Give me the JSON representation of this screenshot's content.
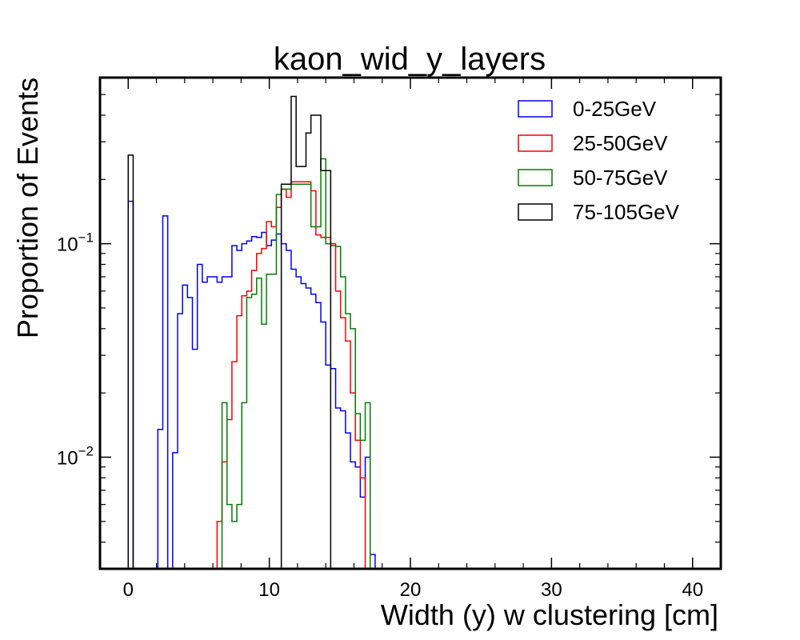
{
  "chart_data": {
    "type": "histogram-step",
    "title": "kaon_wid_y_layers",
    "xlabel": "Width (y) w clustering [cm]",
    "ylabel": "Proportion of Events",
    "xlim": [
      -2,
      42
    ],
    "ylim": [
      0.003,
      0.6
    ],
    "yscale": "log",
    "bin_width": 0.35,
    "x_ticks": [
      0,
      10,
      20,
      30,
      40
    ],
    "x_tick_labels": [
      "0",
      "10",
      "20",
      "30",
      "40"
    ],
    "y_ticks": [
      0.01,
      0.1
    ],
    "y_tick_labels": [
      {
        "base": "10",
        "exp": "−2"
      },
      {
        "base": "10",
        "exp": "−1"
      }
    ],
    "legend_position": "top-right",
    "grid": false,
    "series": [
      {
        "name": "0-25GeV",
        "color": "#0000ff",
        "bins": [
          [
            0.0,
            0.158
          ],
          [
            0.35,
            0.0
          ],
          [
            1.75,
            0.0
          ],
          [
            2.1,
            0.0135
          ],
          [
            2.45,
            0.135
          ],
          [
            2.8,
            0.0025
          ],
          [
            3.15,
            0.0105
          ],
          [
            3.5,
            0.047
          ],
          [
            3.85,
            0.064
          ],
          [
            4.2,
            0.056
          ],
          [
            4.55,
            0.032
          ],
          [
            4.9,
            0.08
          ],
          [
            5.25,
            0.066
          ],
          [
            5.6,
            0.07
          ],
          [
            5.95,
            0.07
          ],
          [
            6.3,
            0.066
          ],
          [
            6.65,
            0.07
          ],
          [
            7.0,
            0.07
          ],
          [
            7.35,
            0.098
          ],
          [
            7.7,
            0.093
          ],
          [
            8.05,
            0.1
          ],
          [
            8.4,
            0.103
          ],
          [
            8.75,
            0.108
          ],
          [
            9.1,
            0.107
          ],
          [
            9.45,
            0.113
          ],
          [
            9.8,
            0.098
          ],
          [
            10.15,
            0.104
          ],
          [
            10.5,
            0.111
          ],
          [
            10.85,
            0.1
          ],
          [
            11.2,
            0.093
          ],
          [
            11.55,
            0.076
          ],
          [
            11.9,
            0.07
          ],
          [
            12.25,
            0.065
          ],
          [
            12.6,
            0.062
          ],
          [
            12.95,
            0.058
          ],
          [
            13.3,
            0.053
          ],
          [
            13.65,
            0.043
          ],
          [
            14.0,
            0.027
          ],
          [
            14.35,
            0.026
          ],
          [
            14.7,
            0.017
          ],
          [
            15.05,
            0.0165
          ],
          [
            15.4,
            0.013
          ],
          [
            15.75,
            0.0095
          ],
          [
            16.1,
            0.009
          ],
          [
            16.45,
            0.0065
          ],
          [
            16.8,
            0.01
          ],
          [
            17.15,
            0.0035
          ],
          [
            17.5,
            0.0
          ]
        ]
      },
      {
        "name": "25-50GeV",
        "color": "#ff0000",
        "bins": [
          [
            5.6,
            0.0
          ],
          [
            5.95,
            0.0
          ],
          [
            6.3,
            0.005
          ],
          [
            6.65,
            0.0095
          ],
          [
            7.0,
            0.015
          ],
          [
            7.35,
            0.028
          ],
          [
            7.7,
            0.046
          ],
          [
            8.05,
            0.057
          ],
          [
            8.4,
            0.06
          ],
          [
            8.75,
            0.075
          ],
          [
            9.1,
            0.09
          ],
          [
            9.45,
            0.095
          ],
          [
            9.8,
            0.127
          ],
          [
            10.15,
            0.12
          ],
          [
            10.5,
            0.148
          ],
          [
            10.85,
            0.18
          ],
          [
            11.2,
            0.165
          ],
          [
            11.55,
            0.195
          ],
          [
            11.9,
            0.195
          ],
          [
            12.25,
            0.195
          ],
          [
            12.6,
            0.195
          ],
          [
            12.95,
            0.177
          ],
          [
            13.3,
            0.11
          ],
          [
            13.65,
            0.107
          ],
          [
            14.0,
            0.107
          ],
          [
            14.35,
            0.1
          ],
          [
            14.7,
            0.06
          ],
          [
            15.05,
            0.045
          ],
          [
            15.4,
            0.035
          ],
          [
            15.75,
            0.02
          ],
          [
            16.1,
            0.012
          ],
          [
            16.45,
            0.008
          ],
          [
            16.8,
            0.0
          ]
        ]
      },
      {
        "name": "50-75GeV",
        "color": "#007f00",
        "bins": [
          [
            6.65,
            0.0
          ],
          [
            6.65,
            0.018
          ],
          [
            7.0,
            0.006
          ],
          [
            7.35,
            0.005
          ],
          [
            7.7,
            0.006
          ],
          [
            8.05,
            0.018
          ],
          [
            8.4,
            0.056
          ],
          [
            8.75,
            0.058
          ],
          [
            9.1,
            0.069
          ],
          [
            9.45,
            0.042
          ],
          [
            9.8,
            0.072
          ],
          [
            10.15,
            0.072
          ],
          [
            10.5,
            0.17
          ],
          [
            10.85,
            0.18
          ],
          [
            11.2,
            0.18
          ],
          [
            11.55,
            0.19
          ],
          [
            11.9,
            0.19
          ],
          [
            12.25,
            0.19
          ],
          [
            12.6,
            0.19
          ],
          [
            12.95,
            0.12
          ],
          [
            13.3,
            0.12
          ],
          [
            13.65,
            0.25
          ],
          [
            14.0,
            0.1
          ],
          [
            14.35,
            0.098
          ],
          [
            14.7,
            0.097
          ],
          [
            15.05,
            0.07
          ],
          [
            15.4,
            0.047
          ],
          [
            15.75,
            0.04
          ],
          [
            16.1,
            0.016
          ],
          [
            16.45,
            0.012
          ],
          [
            16.8,
            0.018
          ],
          [
            17.15,
            0.0
          ]
        ]
      },
      {
        "name": "75-105GeV",
        "color": "#000000",
        "bins": [
          [
            0.0,
            0.26
          ],
          [
            0.35,
            0.0
          ],
          [
            10.5,
            0.0
          ],
          [
            10.85,
            0.19
          ],
          [
            11.2,
            0.19
          ],
          [
            11.55,
            0.49
          ],
          [
            11.9,
            0.23
          ],
          [
            12.25,
            0.23
          ],
          [
            12.6,
            0.33
          ],
          [
            12.95,
            0.4
          ],
          [
            13.3,
            0.4
          ],
          [
            13.65,
            0.22
          ],
          [
            14.0,
            0.22
          ],
          [
            14.35,
            0.0
          ]
        ]
      }
    ]
  }
}
